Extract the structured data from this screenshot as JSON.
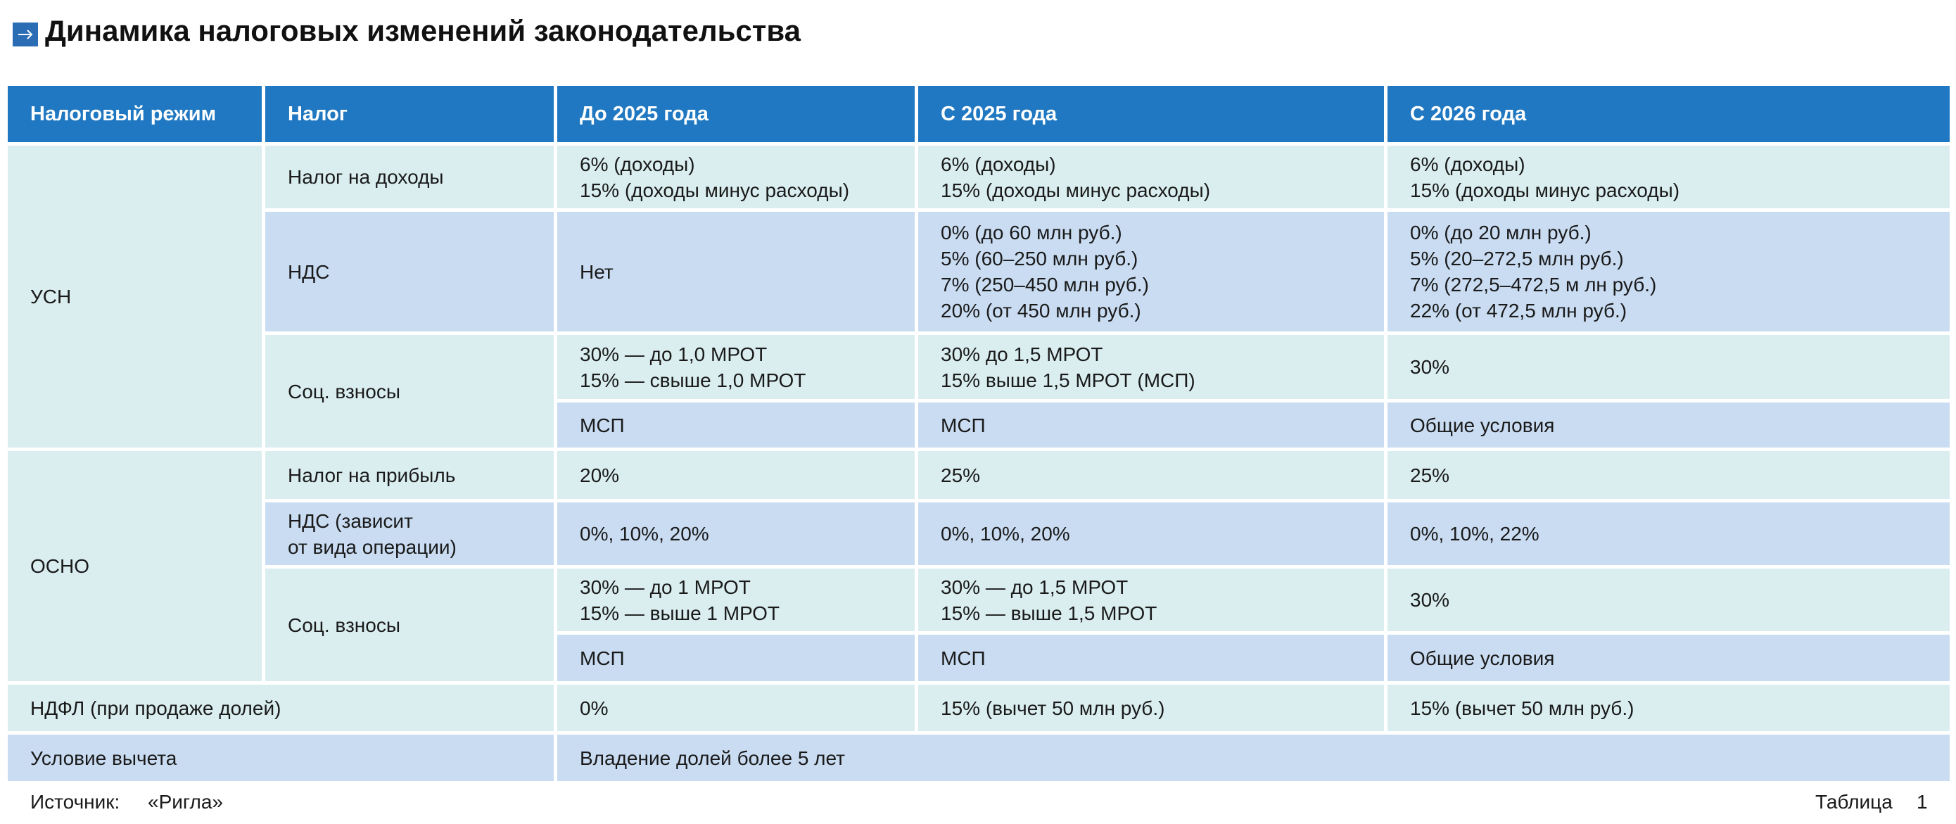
{
  "header": {
    "title": "Динамика налоговых изменений законодательства"
  },
  "table": {
    "columns": [
      "Налоговый режим",
      "Налог",
      "До 2025 года",
      "С 2025 года",
      "С 2026 года"
    ],
    "rows": [
      [
        "УСН",
        "Налог на доходы",
        "6% (доходы)\n15% (доходы минус расходы)",
        "6% (доходы)\n15% (доходы минус расходы)",
        "6% (доходы)\n15% (доходы минус расходы)"
      ],
      [
        "НДС",
        "Нет",
        "0% (до 60 млн руб.)\n5% (60–250 млн руб.)\n7% (250–450 млн руб.)\n20% (от 450 млн руб.)",
        "0% (до 20 млн руб.)\n5% (20–272,5 млн руб.)\n7% (272,5–472,5 м лн руб.)\n22% (от 472,5 млн руб.)"
      ],
      [
        "Соц. взносы",
        "30% — до 1,0 МРОТ\n15% — свыше 1,0 МРОТ",
        "30% до 1,5 МРОТ\n15% выше 1,5 МРОТ (МСП)",
        "30%"
      ],
      [
        "МСП",
        "МСП",
        "Общие условия"
      ],
      [
        "ОСНО",
        "Налог на прибыль",
        "20%",
        "25%",
        "25%"
      ],
      [
        "НДС (зависит\nот вида операции)",
        "0%, 10%, 20%",
        "0%, 10%, 20%",
        "0%, 10%, 22%"
      ],
      [
        "Соц. взносы",
        "30% — до 1 МРОТ\n15% — выше 1 МРОТ",
        "30% — до 1,5 МРОТ\n15% — выше 1,5 МРОТ",
        "30%"
      ],
      [
        "МСП",
        "МСП",
        "Общие условия"
      ],
      [
        "НДФЛ (при продаже долей)",
        "0%",
        "15% (вычет 50 млн руб.)",
        "15% (вычет 50 млн руб.)"
      ],
      [
        "Условие вычета",
        "Владение долей более 5 лет"
      ]
    ]
  },
  "footer": {
    "source_label": "Источник:",
    "source": "«Ригла»",
    "table_label": "Таблица",
    "table_number": "1"
  }
}
